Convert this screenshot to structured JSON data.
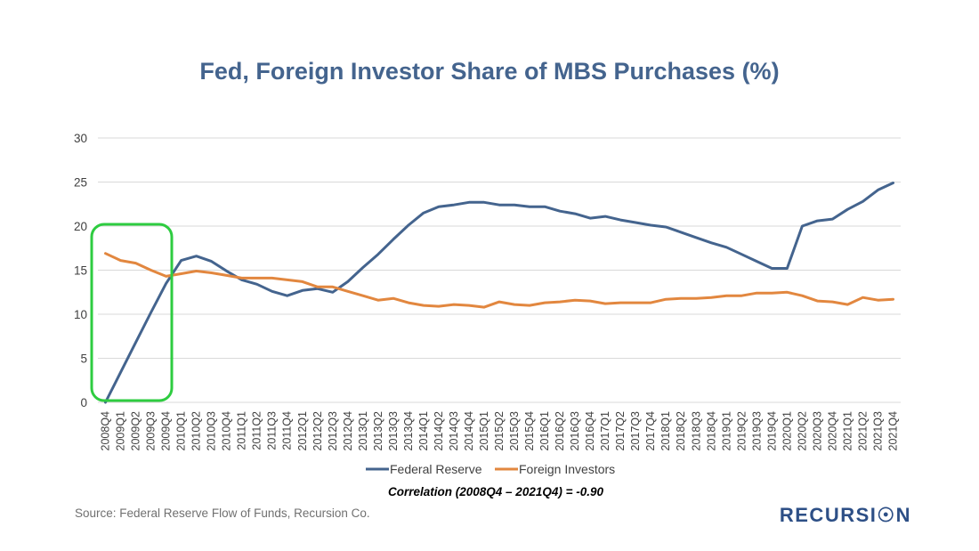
{
  "colors": {
    "federal_reserve": "#44648e",
    "foreign_investors": "#e2873f",
    "title": "#44648e",
    "grid": "#d9d9d9",
    "highlight_box": "#2ecc40",
    "logo": "#2d4f86"
  },
  "chart_data": {
    "type": "line",
    "title": "Fed, Foreign Investor Share of MBS Purchases (%)",
    "xlabel": "",
    "ylabel": "",
    "ylim": [
      0,
      30
    ],
    "yticks": [
      "0",
      "5",
      "10",
      "15",
      "20",
      "25",
      "30"
    ],
    "grid": true,
    "legend_position": "bottom",
    "categories": [
      "2008Q4",
      "2009Q1",
      "2009Q2",
      "2009Q3",
      "2009Q4",
      "2010Q1",
      "2010Q2",
      "2010Q3",
      "2010Q4",
      "2011Q1",
      "2011Q2",
      "2011Q3",
      "2011Q4",
      "2012Q1",
      "2012Q2",
      "2012Q3",
      "2012Q4",
      "2013Q1",
      "2013Q2",
      "2013Q3",
      "2013Q4",
      "2014Q1",
      "2014Q2",
      "2014Q3",
      "2014Q4",
      "2015Q1",
      "2015Q2",
      "2015Q3",
      "2015Q4",
      "2016Q1",
      "2016Q2",
      "2016Q3",
      "2016Q4",
      "2017Q1",
      "2017Q2",
      "2017Q3",
      "2017Q4",
      "2018Q1",
      "2018Q2",
      "2018Q3",
      "2018Q4",
      "2019Q1",
      "2019Q2",
      "2019Q3",
      "2019Q4",
      "2020Q1",
      "2020Q2",
      "2020Q3",
      "2020Q4",
      "2021Q1",
      "2021Q2",
      "2021Q3",
      "2021Q4"
    ],
    "series": [
      {
        "name": "Federal Reserve",
        "values": [
          0.0,
          3.4,
          6.8,
          10.2,
          13.5,
          16.1,
          16.6,
          16.0,
          14.9,
          13.9,
          13.4,
          12.6,
          12.1,
          12.7,
          12.9,
          12.5,
          13.7,
          15.3,
          16.8,
          18.5,
          20.1,
          21.5,
          22.2,
          22.4,
          22.7,
          22.7,
          22.4,
          22.4,
          22.2,
          22.2,
          21.7,
          21.4,
          20.9,
          21.1,
          20.7,
          20.4,
          20.1,
          19.9,
          19.3,
          18.7,
          18.1,
          17.6,
          16.8,
          16.0,
          15.2,
          15.2,
          20.0,
          20.6,
          20.8,
          21.9,
          22.8,
          24.1,
          24.9
        ]
      },
      {
        "name": "Foreign Investors",
        "values": [
          16.9,
          16.1,
          15.8,
          15.0,
          14.3,
          14.6,
          14.9,
          14.7,
          14.4,
          14.1,
          14.1,
          14.1,
          13.9,
          13.7,
          13.1,
          13.1,
          12.6,
          12.1,
          11.6,
          11.8,
          11.3,
          11.0,
          10.9,
          11.1,
          11.0,
          10.8,
          11.4,
          11.1,
          11.0,
          11.3,
          11.4,
          11.6,
          11.5,
          11.2,
          11.3,
          11.3,
          11.3,
          11.7,
          11.8,
          11.8,
          11.9,
          12.1,
          12.1,
          12.4,
          12.4,
          12.5,
          12.1,
          11.5,
          11.4,
          11.1,
          11.9,
          11.6,
          11.7
        ]
      }
    ],
    "annotation": "Correlation (2008Q4 – 2021Q4) = -0.90"
  },
  "source": "Source: Federal Reserve Flow of Funds, Recursion Co.",
  "logo_text": "RECURSI☉N",
  "logo_icon": "target-o-icon"
}
